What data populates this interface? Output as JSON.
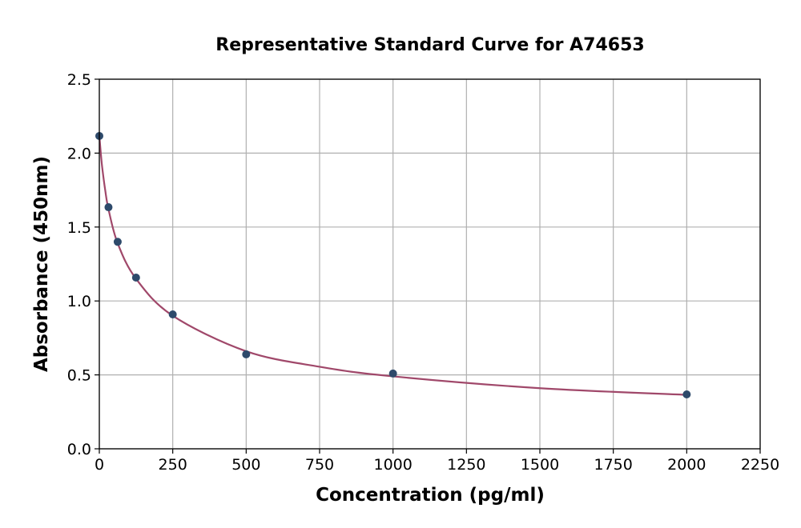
{
  "chart_data": {
    "type": "scatter",
    "title": "Representative Standard Curve for A74653",
    "xlabel": "Concentration (pg/ml)",
    "ylabel": "Absorbance (450nm)",
    "xlim": [
      0,
      2250
    ],
    "ylim": [
      0,
      2.5
    ],
    "xticks": [
      "0",
      "250",
      "500",
      "750",
      "1000",
      "1250",
      "1500",
      "1750",
      "2000",
      "2250"
    ],
    "yticks": [
      "0.0",
      "0.5",
      "1.0",
      "1.5",
      "2.0",
      "2.5"
    ],
    "grid": true,
    "points": {
      "x": [
        0,
        31.25,
        62.5,
        125,
        250,
        500,
        1000,
        2000
      ],
      "y": [
        2.116,
        1.634,
        1.4,
        1.158,
        0.909,
        0.639,
        0.509,
        0.368
      ]
    },
    "curve": {
      "x": [
        0,
        5,
        10,
        20,
        31.25,
        62.5,
        125,
        250,
        500,
        750,
        1000,
        1500,
        2000
      ],
      "y": [
        2.12,
        2.0,
        1.9,
        1.75,
        1.62,
        1.39,
        1.15,
        0.9,
        0.66,
        0.555,
        0.49,
        0.41,
        0.365
      ]
    },
    "colors": {
      "points": "#2e4a6b",
      "curve": "#a0486a",
      "grid": "#b0b0b0"
    }
  }
}
